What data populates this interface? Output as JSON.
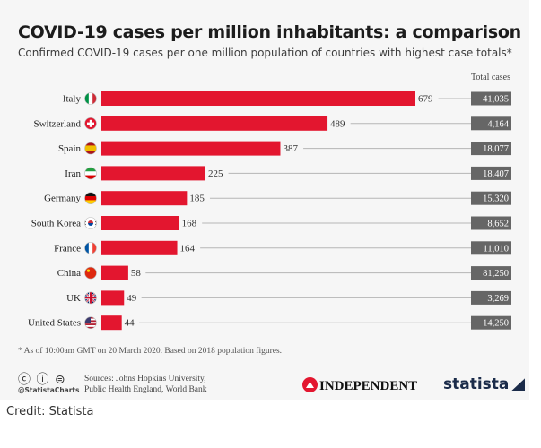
{
  "header": {
    "title": "COVID-19 cases per million inhabitants: a comparison",
    "subtitle": "Confirmed COVID-19 cases per one million population of countries with highest case totals*"
  },
  "chart_data": {
    "type": "bar",
    "orientation": "horizontal",
    "categories": [
      "Italy",
      "Switzerland",
      "Spain",
      "Iran",
      "Germany",
      "South Korea",
      "France",
      "China",
      "UK",
      "United States"
    ],
    "values": [
      679,
      489,
      387,
      225,
      185,
      168,
      164,
      58,
      49,
      44
    ],
    "total_cases_header": "Total cases",
    "total_cases": [
      "41,035",
      "4,164",
      "18,077",
      "18,407",
      "15,320",
      "8,652",
      "11,010",
      "81,250",
      "3,269",
      "14,250"
    ],
    "flags": [
      "italy-flag",
      "switzerland-flag",
      "spain-flag",
      "iran-flag",
      "germany-flag",
      "south-korea-flag",
      "france-flag",
      "china-flag",
      "uk-flag",
      "united-states-flag"
    ],
    "xlim": [
      0,
      679
    ],
    "grid": false,
    "bar_color": "#e3162f",
    "total_box_color": "#666666"
  },
  "footnote": "* As of 10:00am GMT on 20 March 2020. Based on 2018 population figures.",
  "footer": {
    "license_icons": "ⓒ ⓘ ⊜",
    "handle": "@StatistaCharts",
    "sources_line1": "Sources: Johns Hopkins University,",
    "sources_line2": "Public Health England, World Bank",
    "independent_logo": "INDEPENDENT",
    "statista_logo": "statista"
  },
  "credit": "Credit: Statista"
}
